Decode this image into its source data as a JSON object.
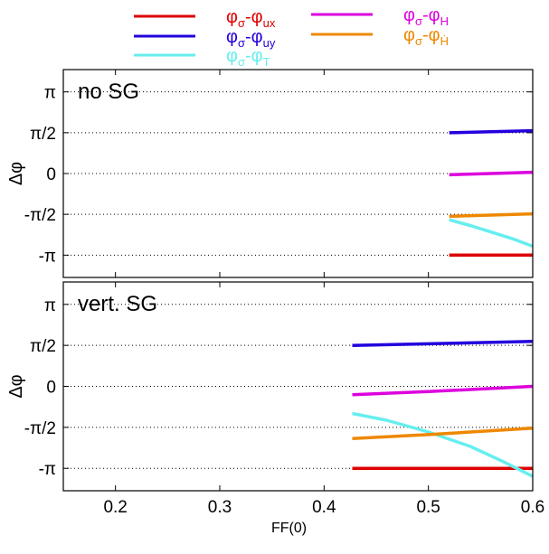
{
  "chart_data": [
    {
      "type": "line",
      "panel_label": "no SG",
      "xlabel": "",
      "ylabel": "Δφ",
      "xlim": [
        0.15,
        0.6
      ],
      "ylim": [
        -4.0,
        4.0
      ],
      "grid": "horizontal dotted",
      "y_ticks": [
        {
          "value": 3.14159,
          "label": "π"
        },
        {
          "value": 1.5708,
          "label": "π/2"
        },
        {
          "value": 0,
          "label": "0"
        },
        {
          "value": -1.5708,
          "label": "-π/2"
        },
        {
          "value": -3.14159,
          "label": "-π"
        }
      ],
      "series": [
        {
          "key": "ux",
          "x": [
            0.52,
            0.56,
            0.6
          ],
          "y": [
            -3.14,
            -3.14,
            -3.14
          ]
        },
        {
          "key": "uy",
          "x": [
            0.52,
            0.56,
            0.6
          ],
          "y": [
            1.57,
            1.61,
            1.65
          ]
        },
        {
          "key": "T",
          "x": [
            0.52,
            0.54,
            0.56,
            0.58,
            0.6
          ],
          "y": [
            -1.78,
            -2.0,
            -2.25,
            -2.5,
            -2.8
          ]
        },
        {
          "key": "H",
          "x": [
            0.52,
            0.56,
            0.6
          ],
          "y": [
            -0.05,
            0.0,
            0.05
          ]
        },
        {
          "key": "Hdot",
          "x": [
            0.52,
            0.56,
            0.6
          ],
          "y": [
            -1.65,
            -1.6,
            -1.55
          ]
        }
      ]
    },
    {
      "type": "line",
      "panel_label": "vert. SG",
      "xlabel": "FF(0)",
      "ylabel": "Δφ",
      "xlim": [
        0.15,
        0.6
      ],
      "ylim": [
        -4.0,
        4.0
      ],
      "grid": "horizontal dotted",
      "x_ticks": [
        {
          "value": 0.2,
          "label": "0.2"
        },
        {
          "value": 0.3,
          "label": "0.3"
        },
        {
          "value": 0.4,
          "label": "0.4"
        },
        {
          "value": 0.5,
          "label": "0.5"
        },
        {
          "value": 0.6,
          "label": "0.6"
        }
      ],
      "y_ticks": [
        {
          "value": 3.14159,
          "label": "π"
        },
        {
          "value": 1.5708,
          "label": "π/2"
        },
        {
          "value": 0,
          "label": "0"
        },
        {
          "value": -1.5708,
          "label": "-π/2"
        },
        {
          "value": -3.14159,
          "label": "-π"
        }
      ],
      "series": [
        {
          "key": "ux",
          "x": [
            0.427,
            0.5,
            0.6
          ],
          "y": [
            -3.14,
            -3.14,
            -3.14
          ]
        },
        {
          "key": "uy",
          "x": [
            0.427,
            0.5,
            0.6
          ],
          "y": [
            1.57,
            1.63,
            1.72
          ]
        },
        {
          "key": "T",
          "x": [
            0.427,
            0.46,
            0.5,
            0.54,
            0.57,
            0.6
          ],
          "y": [
            -1.04,
            -1.3,
            -1.75,
            -2.3,
            -2.85,
            -3.45
          ]
        },
        {
          "key": "H",
          "x": [
            0.427,
            0.5,
            0.6
          ],
          "y": [
            -0.32,
            -0.2,
            0.0
          ]
        },
        {
          "key": "Hdot",
          "x": [
            0.427,
            0.5,
            0.6
          ],
          "y": [
            -2.0,
            -1.85,
            -1.6
          ]
        }
      ]
    }
  ],
  "legend": {
    "placement": "top, two columns",
    "items": [
      {
        "key": "ux",
        "base": "φ",
        "sub1": "σ",
        "mid": "-φ",
        "sub2": "ux",
        "color": "#dd0000"
      },
      {
        "key": "uy",
        "base": "φ",
        "sub1": "σ",
        "mid": "-φ",
        "sub2": "uy",
        "color": "#2200dd"
      },
      {
        "key": "T",
        "base": "φ",
        "sub1": "σ",
        "mid": "-φ",
        "sub2": "T",
        "color": "#66eeee"
      },
      {
        "key": "H",
        "base": "φ",
        "sub1": "σ",
        "mid": "-φ",
        "sub2": "H",
        "color": "#dd00dd"
      },
      {
        "key": "Hdot",
        "base": "φ",
        "sub1": "σ",
        "mid": "-φ",
        "sub2": "Ḣ",
        "color": "#ee8800"
      }
    ]
  }
}
